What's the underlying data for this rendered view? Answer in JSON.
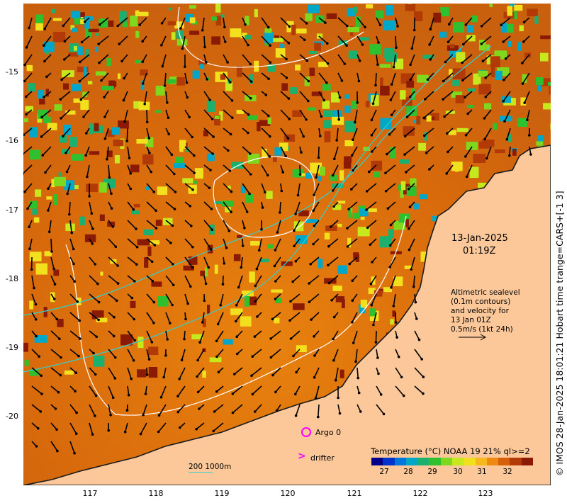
{
  "map": {
    "latitude_labels": [
      "-15",
      "-16",
      "-17",
      "-18",
      "-19",
      "-20"
    ],
    "longitude_labels": [
      "117",
      "118",
      "119",
      "120",
      "121",
      "122",
      "123"
    ],
    "colors": {
      "land": "#fcc89a",
      "coast": "#1a1a1a",
      "contour": "#ffffff",
      "bathymetry_200_1000m": "#30d0d0",
      "argo": "#ff00ff"
    }
  },
  "annotation": {
    "date": "13-Jan-2025",
    "time": "01:19Z",
    "altimetry_lines": [
      "Altimetric sealevel",
      "(0.1m contours)",
      "and velocity for",
      "13 Jan 01Z",
      "0.5m/s (1kt 24h)"
    ]
  },
  "legend": {
    "argo_label": "Argo 0",
    "drifter_label": "drifter",
    "depth_label": "200  1000m"
  },
  "colorbar": {
    "title": "Temperature (°C) NOAA 19 21% ql>=2",
    "ticks": [
      "27",
      "28",
      "29",
      "30",
      "31",
      "32"
    ],
    "colors": [
      "#00008b",
      "#0033cc",
      "#0077dd",
      "#00a7c8",
      "#19b070",
      "#2fc030",
      "#7fd81e",
      "#c8e81e",
      "#f2e01e",
      "#f6b81a",
      "#ee8a12",
      "#d85e0a",
      "#b23a06",
      "#8a1a04"
    ]
  },
  "credit": "© IMOS 28-Jan-2025 18:01:21 Hobart time trange=CARS+[-1 3]"
}
